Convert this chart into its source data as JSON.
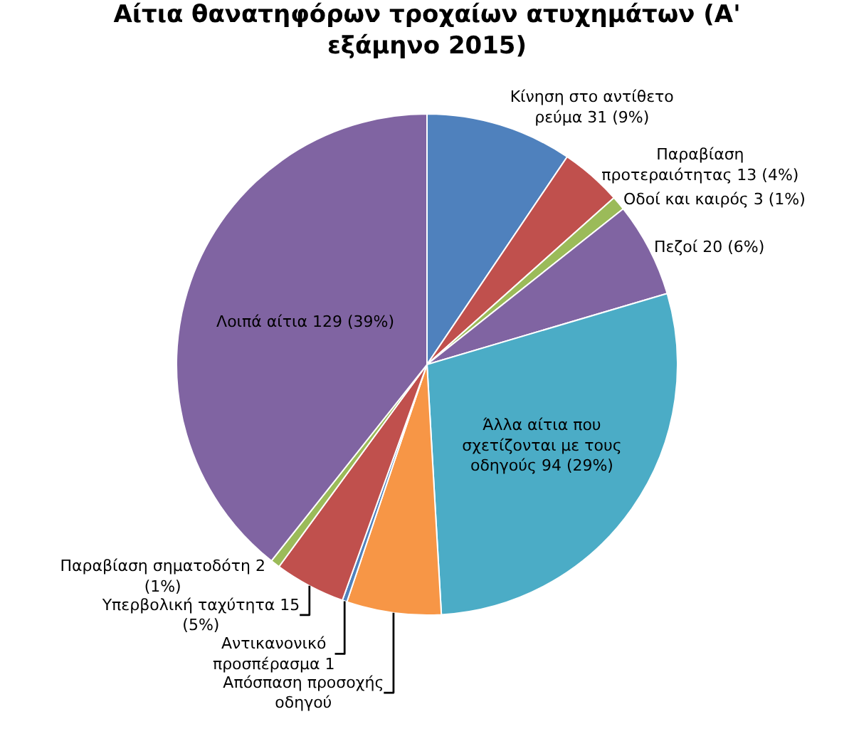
{
  "chart_data": {
    "type": "pie",
    "title": "Αίτια θανατηφόρων τροχαίων ατυχημάτων (Α' εξάμηνο 2015)",
    "categories": [
      "Κίνηση στο αντίθετο ρεύμα",
      "Παραβίαση προτεραιότητας",
      "Οδοί και καιρός",
      "Πεζοί",
      "Άλλα αίτια που σχετίζονται με τους οδηγούς",
      "Απόσπαση προσοχής οδηγού",
      "Αντικανονικό προσπέρασμα",
      "Υπερβολική ταχύτητα",
      "Παραβίαση σηματοδότη",
      "Λοιπά αίτια"
    ],
    "values": [
      31,
      13,
      3,
      20,
      94,
      20,
      1,
      15,
      2,
      129
    ],
    "value_labels": [
      "31 (9%)",
      "13 (4%)",
      "3 (1%)",
      "20 (6%)",
      "94 (29%)",
      null,
      "1",
      "15 (5%)",
      "2 (1%)",
      "129 (39%)"
    ],
    "colors": [
      "#4f81bd",
      "#c0504d",
      "#9bbb59",
      "#8064a2",
      "#4bacc6",
      "#f79646",
      "#4f81bd",
      "#c0504d",
      "#9bbb59",
      "#8064a2"
    ],
    "legend": false
  }
}
